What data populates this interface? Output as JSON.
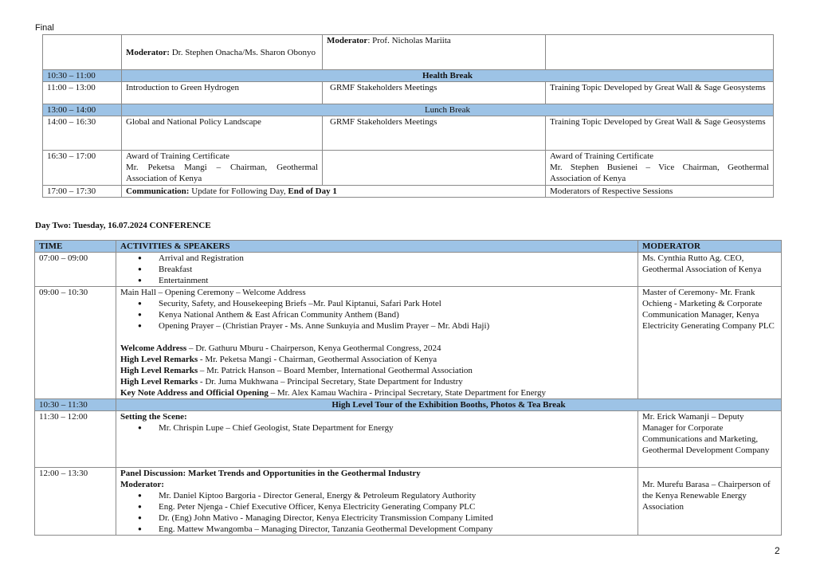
{
  "header": "Final",
  "page_number": "2",
  "colors": {
    "break_fill": "#9dc3e6",
    "border": "#8a8a8a"
  },
  "day1": {
    "row_moderators": {
      "col1_label": "Moderator:",
      "col1_value": " Dr. Stephen Onacha/Ms. Sharon Obonyo",
      "col2_label": "Moderator",
      "col2_value": ": Prof. Nicholas Mariita"
    },
    "health_break": {
      "time": "10:30 – 11:00",
      "label": "Health Break"
    },
    "row_1100": {
      "time": "11:00 – 13:00",
      "c1": "Introduction to Green Hydrogen",
      "c2": "GRMF Stakeholders Meetings",
      "c3": "Training Topic Developed by Great Wall & Sage Geosystems"
    },
    "lunch_break": {
      "time": "13:00 – 14:00",
      "label": "Lunch Break"
    },
    "row_1400": {
      "time": "14:00 – 16:30",
      "c1": "Global and National Policy Landscape",
      "c2": "GRMF Stakeholders Meetings",
      "c3": "Training Topic Developed by Great Wall & Sage Geosystems"
    },
    "row_1630": {
      "time": "16:30 – 17:00",
      "c1a": "Award of Training Certificate",
      "c1b": "Mr. Peketsa Mangi – Chairman, Geothermal Association of Kenya",
      "c3a": "Award of Training Certificate",
      "c3b": "Mr. Stephen Busienei – Vice Chairman, Geothermal Association of Kenya"
    },
    "row_1700": {
      "time": "17:00 – 17:30",
      "label": "Communication:",
      "text": " Update for Following Day, ",
      "end": "End of Day 1",
      "moderator": "Moderators of Respective Sessions"
    }
  },
  "day2": {
    "title": "Day Two: Tuesday, 16.07.2024  CONFERENCE",
    "headers": [
      "TIME",
      "ACTIVITIES &  SPEAKERS",
      "MODERATOR"
    ],
    "row_0700": {
      "time": "07:00 – 09:00",
      "bullets": [
        "Arrival and Registration",
        "Breakfast",
        "Entertainment"
      ],
      "moderator": "Ms. Cynthia Rutto Ag. CEO, Geothermal Association of Kenya"
    },
    "row_0900": {
      "time": "09:00 – 10:30",
      "intro": "Main Hall – Opening Ceremony – Welcome Address",
      "bullets": [
        "Security, Safety, and Housekeeping Briefs –Mr. Paul Kiptanui,  Safari Park Hotel",
        "Kenya National Anthem & East African Community Anthem (Band)",
        "Opening Prayer – (Christian Prayer - Ms. Anne Sunkuyia and Muslim Prayer – Mr. Abdi Haji)"
      ],
      "lines": [
        {
          "b": "Welcome Address",
          "t": " – Dr. Gathuru Mburu - Chairperson, Kenya Geothermal Congress, 2024"
        },
        {
          "b": "High Level Remarks",
          "t": " - Mr. Peketsa Mangi - Chairman, Geothermal Association of Kenya"
        },
        {
          "b": "High Level Remarks",
          "t": " – Mr. Patrick Hanson – Board Member, International Geothermal Association"
        },
        {
          "b": "High Level Remarks",
          "t": " - Dr. Juma Mukhwana – Principal Secretary, State Department for Industry"
        },
        {
          "b": "Key Note Address and Official Opening",
          "t": " – Mr. Alex Kamau Wachira - Principal Secretary, State Department for Energy"
        }
      ],
      "moderator": "Master of Ceremony- Mr. Frank Ochieng - Marketing & Corporate Communication Manager, Kenya Electricity Generating Company PLC"
    },
    "tour_break": {
      "time": "10:30 – 11:30",
      "label": "High Level Tour of the Exhibition Booths, Photos & Tea Break"
    },
    "row_1130": {
      "time": "11:30 – 12:00",
      "title": "Setting the Scene:",
      "bullets": [
        "Mr. Chrispin Lupe – Chief Geologist, State Department for Energy"
      ],
      "moderator": "Mr. Erick Wamanji – Deputy Manager for Corporate Communications and Marketing, Geothermal Development Company"
    },
    "row_1200": {
      "time": "12:00 – 13:30",
      "title": "Panel Discussion: Market Trends and Opportunities in the Geothermal Industry",
      "sub": "Moderator:",
      "bullets": [
        "Mr. Daniel Kiptoo Bargoria - Director General, Energy & Petroleum Regulatory Authority",
        "Eng. Peter Njenga - Chief Executive Officer, Kenya Electricity Generating Company PLC",
        "Dr. (Eng) John Mativo - Managing Director, Kenya Electricity Transmission Company Limited",
        "Eng. Mattew Mwangomba – Managing Director, Tanzania Geothermal Development Company"
      ],
      "moderator": "Mr. Murefu Barasa – Chairperson of the Kenya Renewable Energy Association"
    }
  }
}
